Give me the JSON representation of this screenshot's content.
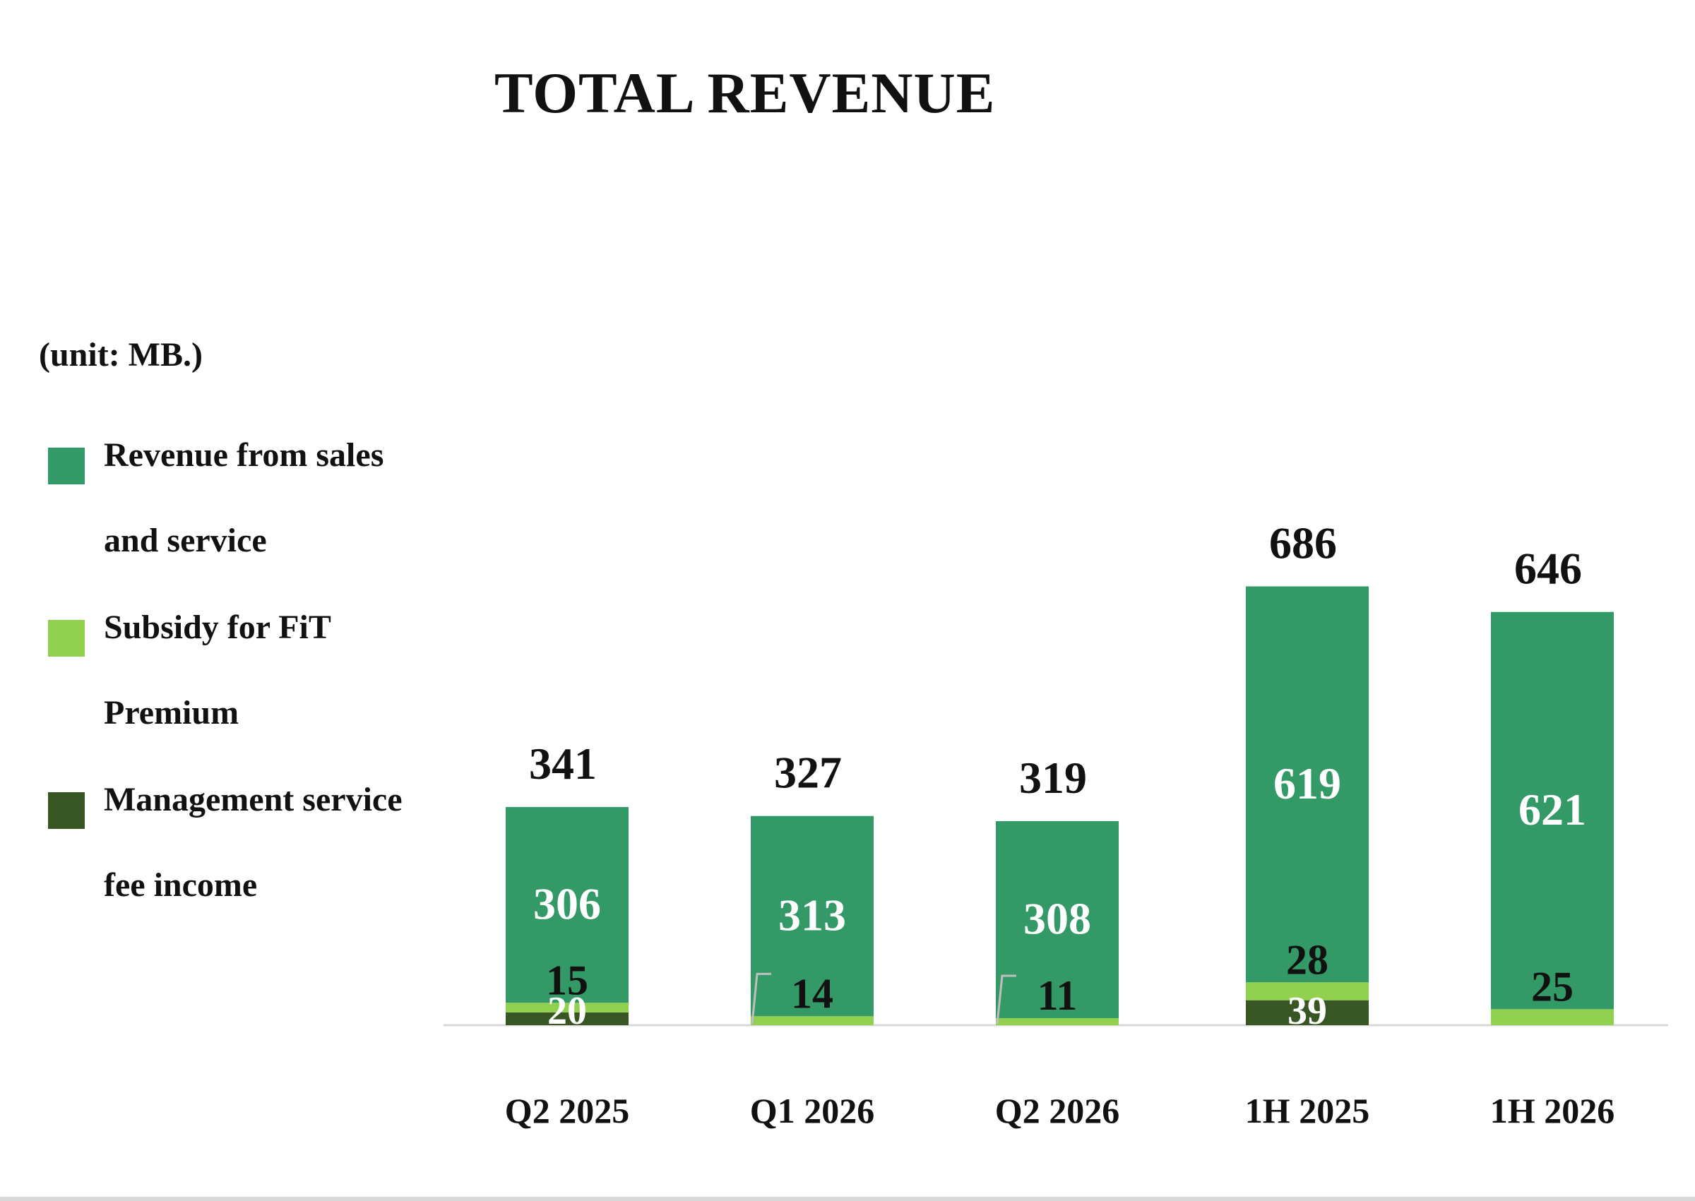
{
  "chart_data": {
    "type": "bar",
    "stacked": true,
    "title": "TOTAL REVENUE",
    "unit_label": "(unit: MB.)",
    "categories": [
      "Q2 2025",
      "Q1 2026",
      "Q2 2026",
      "1H 2025",
      "1H 2026"
    ],
    "series": [
      {
        "name": "Management service fee income",
        "values": [
          20,
          0,
          0,
          39,
          0
        ],
        "labels": [
          "20",
          "",
          "",
          "39",
          ""
        ],
        "color": "#375623"
      },
      {
        "name": "Subsidy for FiT Premium",
        "values": [
          15,
          14,
          11,
          28,
          25
        ],
        "labels": [
          "15",
          "14",
          "11",
          "28",
          "25"
        ],
        "color": "#92d050"
      },
      {
        "name": "Revenue from sales and service",
        "values": [
          306,
          313,
          308,
          619,
          621
        ],
        "labels": [
          "306",
          "313",
          "308",
          "619",
          "621"
        ],
        "color": "#339966"
      }
    ],
    "totals": [
      "341",
      "327",
      "319",
      "686",
      "646"
    ],
    "legend": {
      "placement": "left",
      "items": [
        {
          "lines": [
            "Revenue from sales",
            "and service"
          ],
          "color": "#339966"
        },
        {
          "lines": [
            "Subsidy for FiT",
            "Premium"
          ],
          "color": "#92d050"
        },
        {
          "lines": [
            "Management service",
            "fee income"
          ],
          "color": "#375623"
        }
      ]
    },
    "ylim": [
      0,
      700
    ],
    "grid": false,
    "baseline_color": "#d9d9d9"
  }
}
